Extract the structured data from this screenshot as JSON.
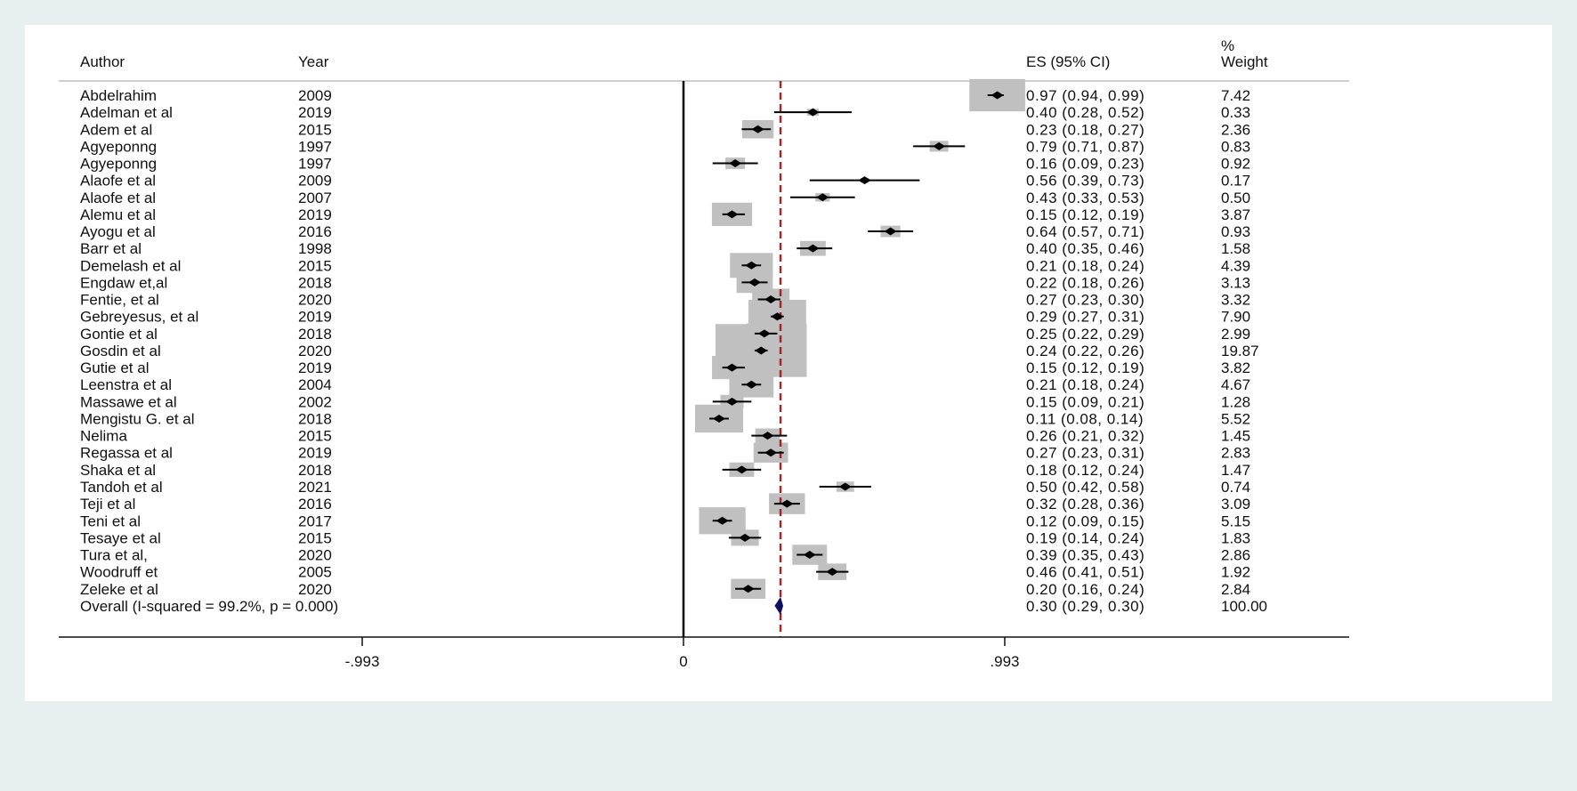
{
  "chart_data": {
    "type": "forest",
    "headers": {
      "author": "Author",
      "year": "Year",
      "es": "ES (95% CI)",
      "weight_pct": "%",
      "weight": "Weight"
    },
    "rows": [
      {
        "author": "Abdelrahim",
        "year": "2009",
        "es": 0.97,
        "lo": 0.94,
        "hi": 0.99,
        "label": "0.97 (0.94, 0.99)",
        "weight": "7.42"
      },
      {
        "author": "Adelman et al",
        "year": "2019",
        "es": 0.4,
        "lo": 0.28,
        "hi": 0.52,
        "label": "0.40 (0.28, 0.52)",
        "weight": "0.33"
      },
      {
        "author": "Adem et al",
        "year": "2015",
        "es": 0.23,
        "lo": 0.18,
        "hi": 0.27,
        "label": "0.23 (0.18, 0.27)",
        "weight": "2.36"
      },
      {
        "author": "Agyeponng",
        "year": "1997",
        "es": 0.79,
        "lo": 0.71,
        "hi": 0.87,
        "label": "0.79 (0.71, 0.87)",
        "weight": "0.83"
      },
      {
        "author": "Agyeponng",
        "year": "1997",
        "es": 0.16,
        "lo": 0.09,
        "hi": 0.23,
        "label": "0.16 (0.09, 0.23)",
        "weight": "0.92"
      },
      {
        "author": "Alaofe et al",
        "year": "2009",
        "es": 0.56,
        "lo": 0.39,
        "hi": 0.73,
        "label": "0.56 (0.39, 0.73)",
        "weight": "0.17"
      },
      {
        "author": "Alaofe et al",
        "year": "2007",
        "es": 0.43,
        "lo": 0.33,
        "hi": 0.53,
        "label": "0.43 (0.33, 0.53)",
        "weight": "0.50"
      },
      {
        "author": "Alemu et al",
        "year": "2019",
        "es": 0.15,
        "lo": 0.12,
        "hi": 0.19,
        "label": "0.15 (0.12, 0.19)",
        "weight": "3.87"
      },
      {
        "author": "Ayogu et al",
        "year": "2016",
        "es": 0.64,
        "lo": 0.57,
        "hi": 0.71,
        "label": "0.64 (0.57, 0.71)",
        "weight": "0.93"
      },
      {
        "author": "Barr et al",
        "year": "1998",
        "es": 0.4,
        "lo": 0.35,
        "hi": 0.46,
        "label": "0.40 (0.35, 0.46)",
        "weight": "1.58"
      },
      {
        "author": "Demelash et al",
        "year": "2015",
        "es": 0.21,
        "lo": 0.18,
        "hi": 0.24,
        "label": "0.21 (0.18, 0.24)",
        "weight": "4.39"
      },
      {
        "author": "Engdaw et,al",
        "year": "2018",
        "es": 0.22,
        "lo": 0.18,
        "hi": 0.26,
        "label": "0.22 (0.18, 0.26)",
        "weight": "3.13"
      },
      {
        "author": "Fentie, et al",
        "year": "2020",
        "es": 0.27,
        "lo": 0.23,
        "hi": 0.3,
        "label": "0.27 (0.23, 0.30)",
        "weight": "3.32"
      },
      {
        "author": "Gebreyesus, et al",
        "year": "2019",
        "es": 0.29,
        "lo": 0.27,
        "hi": 0.31,
        "label": "0.29 (0.27, 0.31)",
        "weight": "7.90"
      },
      {
        "author": "Gontie et al",
        "year": "2018",
        "es": 0.25,
        "lo": 0.22,
        "hi": 0.29,
        "label": "0.25 (0.22, 0.29)",
        "weight": "2.99"
      },
      {
        "author": "Gosdin et al",
        "year": "2020",
        "es": 0.24,
        "lo": 0.22,
        "hi": 0.26,
        "label": "0.24 (0.22, 0.26)",
        "weight": "19.87"
      },
      {
        "author": "Gutie et al",
        "year": "2019",
        "es": 0.15,
        "lo": 0.12,
        "hi": 0.19,
        "label": "0.15 (0.12, 0.19)",
        "weight": "3.82"
      },
      {
        "author": "Leenstra et al",
        "year": "2004",
        "es": 0.21,
        "lo": 0.18,
        "hi": 0.24,
        "label": "0.21 (0.18, 0.24)",
        "weight": "4.67"
      },
      {
        "author": "Massawe et al",
        "year": "2002",
        "es": 0.15,
        "lo": 0.09,
        "hi": 0.21,
        "label": "0.15 (0.09, 0.21)",
        "weight": "1.28"
      },
      {
        "author": "Mengistu G. et al",
        "year": "2018",
        "es": 0.11,
        "lo": 0.08,
        "hi": 0.14,
        "label": "0.11 (0.08, 0.14)",
        "weight": "5.52"
      },
      {
        "author": "Nelima",
        "year": "2015",
        "es": 0.26,
        "lo": 0.21,
        "hi": 0.32,
        "label": "0.26 (0.21, 0.32)",
        "weight": "1.45"
      },
      {
        "author": "Regassa et al",
        "year": "2019",
        "es": 0.27,
        "lo": 0.23,
        "hi": 0.31,
        "label": "0.27 (0.23, 0.31)",
        "weight": "2.83"
      },
      {
        "author": "Shaka et al",
        "year": "2018",
        "es": 0.18,
        "lo": 0.12,
        "hi": 0.24,
        "label": "0.18 (0.12, 0.24)",
        "weight": "1.47"
      },
      {
        "author": "Tandoh et al",
        "year": "2021",
        "es": 0.5,
        "lo": 0.42,
        "hi": 0.58,
        "label": "0.50 (0.42, 0.58)",
        "weight": "0.74"
      },
      {
        "author": "Teji et al",
        "year": "2016",
        "es": 0.32,
        "lo": 0.28,
        "hi": 0.36,
        "label": "0.32 (0.28, 0.36)",
        "weight": "3.09"
      },
      {
        "author": "Teni et al",
        "year": "2017",
        "es": 0.12,
        "lo": 0.09,
        "hi": 0.15,
        "label": "0.12 (0.09, 0.15)",
        "weight": "5.15"
      },
      {
        "author": "Tesaye et al",
        "year": "2015",
        "es": 0.19,
        "lo": 0.14,
        "hi": 0.24,
        "label": "0.19 (0.14, 0.24)",
        "weight": "1.83"
      },
      {
        "author": "Tura et al,",
        "year": "2020",
        "es": 0.39,
        "lo": 0.35,
        "hi": 0.43,
        "label": "0.39 (0.35, 0.43)",
        "weight": "2.86"
      },
      {
        "author": "Woodruff et",
        "year": "2005",
        "es": 0.46,
        "lo": 0.41,
        "hi": 0.51,
        "label": "0.46 (0.41, 0.51)",
        "weight": "1.92"
      },
      {
        "author": "Zeleke et al",
        "year": "2020",
        "es": 0.2,
        "lo": 0.16,
        "hi": 0.24,
        "label": "0.20 (0.16, 0.24)",
        "weight": "2.84"
      }
    ],
    "overall": {
      "label_text": "Overall  (I-squared = 99.2%, p = 0.000)",
      "es": 0.3,
      "lo": 0.29,
      "hi": 0.3,
      "label": "0.30 (0.29, 0.30)",
      "weight": "100.00"
    },
    "x_ticks": [
      {
        "value": -0.993,
        "label": "-.993"
      },
      {
        "value": 0,
        "label": "0"
      },
      {
        "value": 0.993,
        "label": ".993"
      }
    ],
    "xlim": [
      -1.0,
      1.0
    ],
    "colors": {
      "box": "#c0c0c0",
      "point": "#000000",
      "overall_line": "#a02828",
      "diamond": "#101060",
      "background": "#e8eff1"
    }
  }
}
